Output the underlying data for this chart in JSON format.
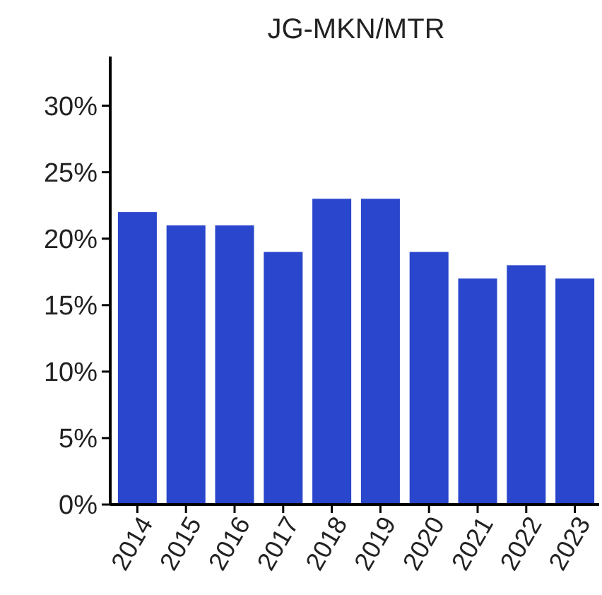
{
  "chart_data": {
    "type": "bar",
    "title": "JG-MKN/MTR",
    "categories": [
      "2014",
      "2015",
      "2016",
      "2017",
      "2018",
      "2019",
      "2020",
      "2021",
      "2022",
      "2023"
    ],
    "values": [
      22,
      21,
      21,
      19,
      23,
      23,
      19,
      17,
      18,
      17
    ],
    "color": "#2a46cc",
    "ylim": [
      0,
      33.7
    ],
    "yticks": [
      {
        "value": 0,
        "label": "0%"
      },
      {
        "value": 5,
        "label": "5%"
      },
      {
        "value": 10,
        "label": "10%"
      },
      {
        "value": 15,
        "label": "15%"
      },
      {
        "value": 20,
        "label": "20%"
      },
      {
        "value": 25,
        "label": "25%"
      },
      {
        "value": 30,
        "label": "30%"
      }
    ],
    "grid": false
  }
}
